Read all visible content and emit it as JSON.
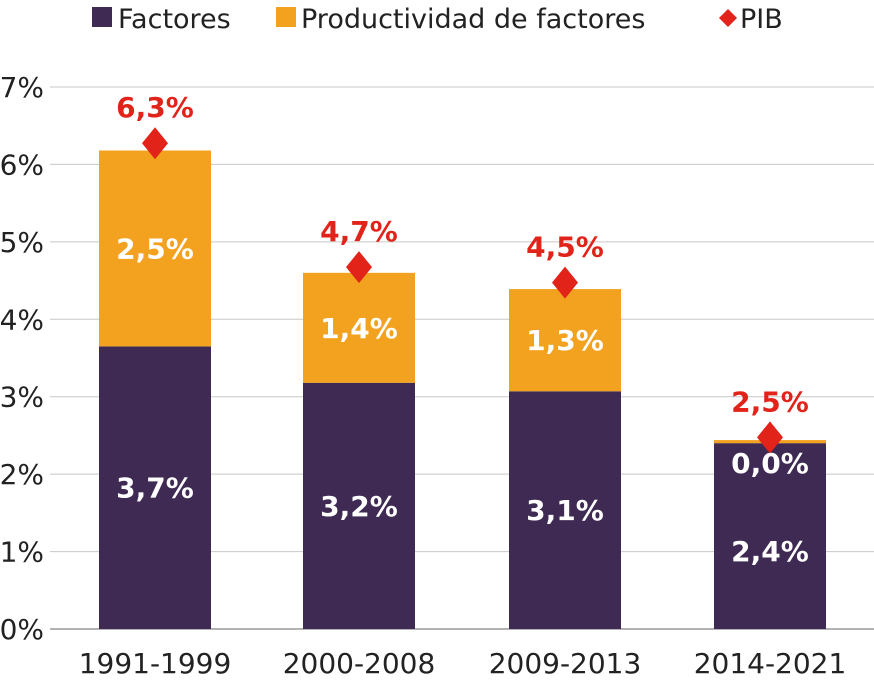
{
  "chart_data": {
    "type": "bar",
    "stacked": true,
    "title": "",
    "xlabel": "",
    "ylabel": "",
    "ylim": [
      0,
      7
    ],
    "y_ticks": [
      "0%",
      "1%",
      "2%",
      "3%",
      "4%",
      "5%",
      "6%",
      "7%"
    ],
    "grid": "horizontal",
    "legend_position": "top",
    "categories": [
      "1991-1999",
      "2000-2008",
      "2009-2013",
      "2014-2021"
    ],
    "series": [
      {
        "name": "Factores",
        "kind": "bar",
        "color": "#3e2a52",
        "values": [
          3.65,
          3.18,
          3.07,
          2.4
        ],
        "labels": [
          "3,7%",
          "3,2%",
          "3,1%",
          "2,4%"
        ]
      },
      {
        "name": "Productividad de factores",
        "kind": "bar",
        "color": "#f2a21f",
        "values": [
          2.53,
          1.42,
          1.32,
          0.04
        ],
        "labels": [
          "2,5%",
          "1,4%",
          "1,3%",
          "0,0%"
        ]
      },
      {
        "name": "PIB",
        "kind": "marker",
        "marker": "diamond",
        "color": "#e2231a",
        "values": [
          6.3,
          4.7,
          4.5,
          2.5
        ],
        "labels": [
          "6,3%",
          "4,7%",
          "4,5%",
          "2,5%"
        ]
      }
    ]
  }
}
